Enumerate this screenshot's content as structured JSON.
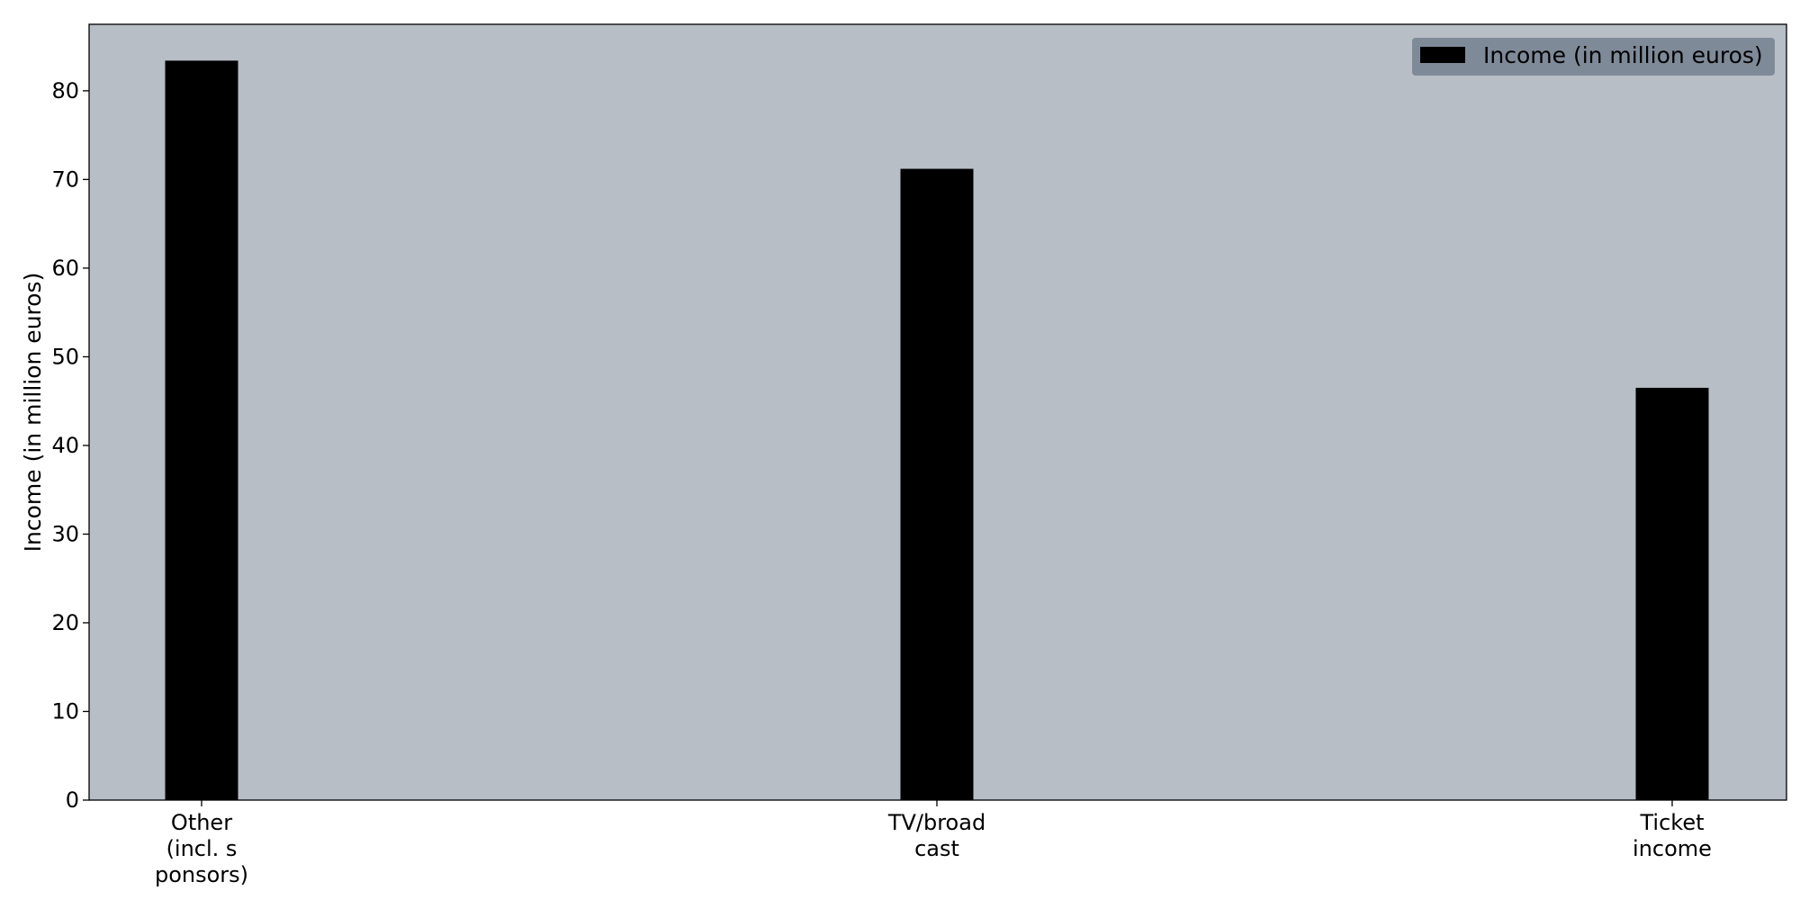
{
  "chart_data": {
    "type": "bar",
    "categories": [
      [
        "Other",
        "(incl. s",
        "ponsors)"
      ],
      [
        "TV/broad",
        "cast"
      ],
      [
        "Ticket",
        "income"
      ]
    ],
    "series": [
      {
        "name": "Income (in million euros)",
        "values": [
          83.4,
          71.2,
          46.5
        ]
      }
    ],
    "title": "",
    "xlabel": "",
    "ylabel": "Income (in million euros)",
    "ylim": [
      0,
      87.5
    ],
    "yticks": [
      0,
      10,
      20,
      30,
      40,
      50,
      60,
      70,
      80
    ],
    "grid": false,
    "legend_position": "top-right",
    "colors": {
      "plot_background": "#b8bec6",
      "bar": "#000000",
      "legend_background": "#7f8a99"
    }
  }
}
